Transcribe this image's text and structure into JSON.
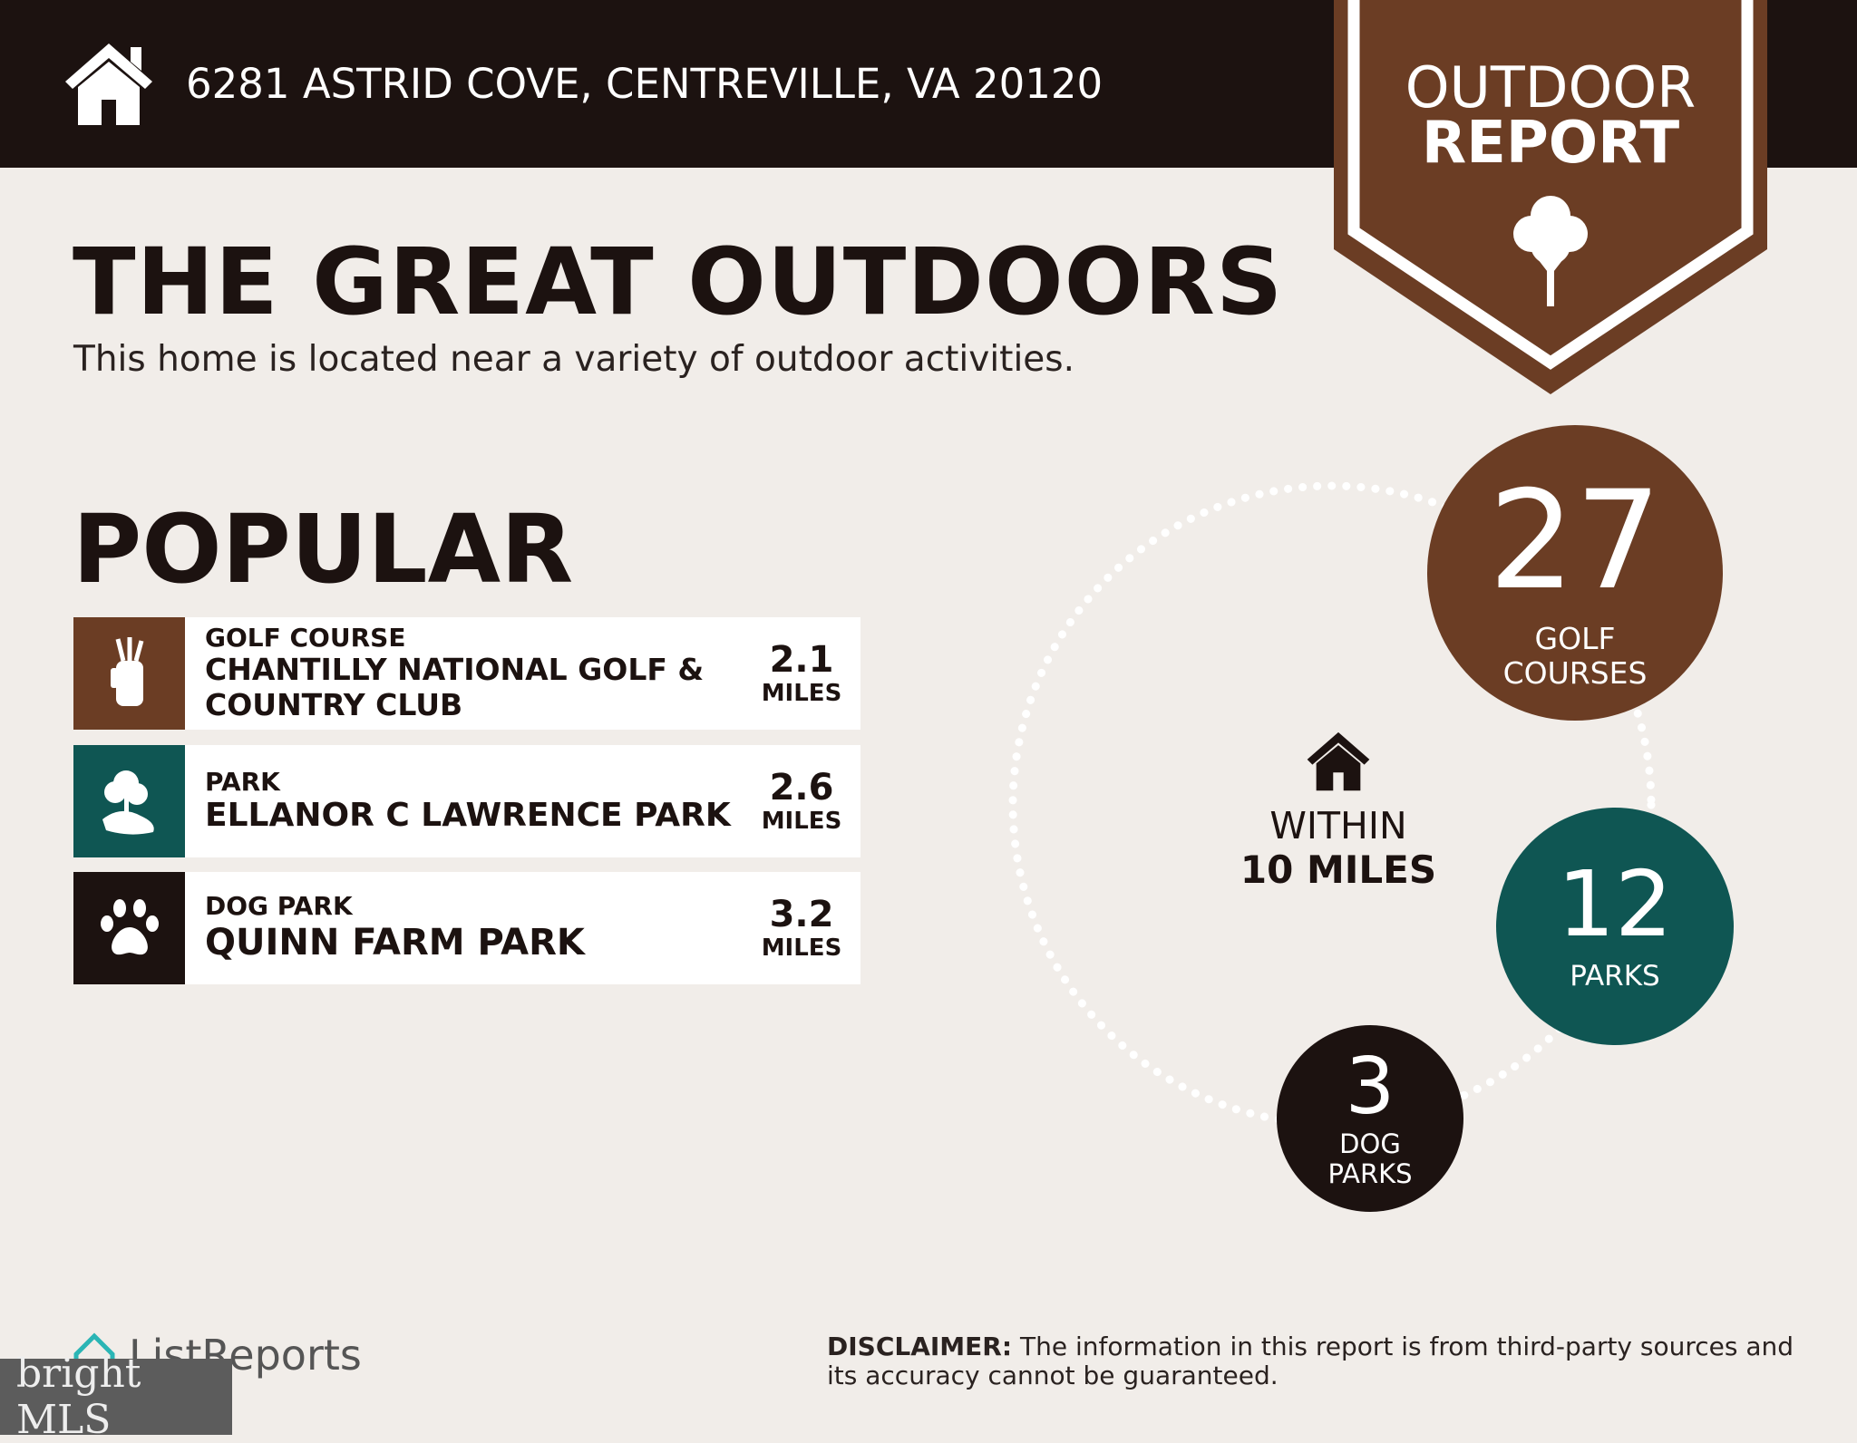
{
  "header": {
    "address": "6281 ASTRID COVE, CENTREVILLE, VA 20120",
    "icon": "house-icon"
  },
  "badge": {
    "line1": "OUTDOOR",
    "line2": "REPORT",
    "icon": "tree-icon"
  },
  "title": "THE GREAT OUTDOORS",
  "subtitle": "This home is located near a variety of outdoor activities.",
  "popular": {
    "heading": "POPULAR",
    "items": [
      {
        "category": "GOLF COURSE",
        "name": "CHANTILLY NATIONAL GOLF & COUNTRY CLUB",
        "distance": "2.1",
        "unit": "MILES",
        "icon": "golf-bag-icon",
        "color": "#6b3d24"
      },
      {
        "category": "PARK",
        "name": "ELLANOR C LAWRENCE PARK",
        "distance": "2.6",
        "unit": "MILES",
        "icon": "park-tree-icon",
        "color": "#0f5653"
      },
      {
        "category": "DOG PARK",
        "name": "QUINN FARM PARK",
        "distance": "3.2",
        "unit": "MILES",
        "icon": "paw-icon",
        "color": "#1c1210"
      }
    ]
  },
  "radius": {
    "line1": "WITHIN",
    "line2": "10 MILES"
  },
  "counts": [
    {
      "value": "27",
      "label1": "GOLF",
      "label2": "COURSES",
      "color": "#6b3d24"
    },
    {
      "value": "12",
      "label1": "PARKS",
      "color": "#0f5653"
    },
    {
      "value": "3",
      "label1": "DOG",
      "label2": "PARKS",
      "color": "#1c1210"
    }
  ],
  "footer": {
    "brand": "ListReports",
    "disclaimer_label": "DISCLAIMER:",
    "disclaimer_text": " The information in this report is from third-party sources and its accuracy cannot be guaranteed.",
    "watermark": "bright MLS"
  }
}
